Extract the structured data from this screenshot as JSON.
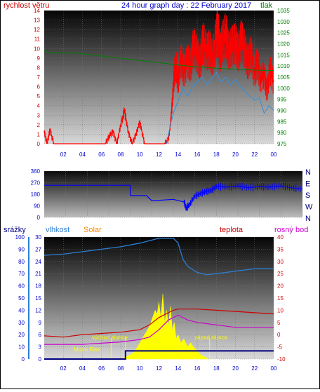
{
  "title": "24 hour graph day : 22 February 2017",
  "colors": {
    "wind": "#ff0000",
    "gust_line": "#3b8fd6",
    "pressure": "#008000",
    "direction": "#0000ff",
    "humidity": "#2c7fd4",
    "solar": "#ffff00",
    "temperature": "#cc0000",
    "dewpoint": "#cc00cc",
    "rain": "#000080",
    "label_blue": "#0000cc",
    "label_orange": "#ff8800",
    "label_red": "#cc0000"
  },
  "x_ticks": [
    "02",
    "04",
    "06",
    "08",
    "10",
    "12",
    "14",
    "16",
    "18",
    "20",
    "22",
    "00"
  ],
  "chart_data": [
    {
      "type": "line",
      "name_left": "rychlost větru",
      "name_right": "tlak",
      "x_range": [
        0,
        24
      ],
      "y_left_range": [
        0,
        14
      ],
      "y_left_ticks": [
        "0",
        "1",
        "2",
        "3",
        "4",
        "5",
        "6",
        "7",
        "8",
        "9",
        "10",
        "11",
        "12",
        "13",
        "14"
      ],
      "y_right_range": [
        975,
        1035
      ],
      "y_right_ticks": [
        "975",
        "980",
        "985",
        "990",
        "995",
        "1000",
        "1005",
        "1010",
        "1015",
        "1020",
        "1025",
        "1030",
        "1035"
      ],
      "series": [
        {
          "axis": "left",
          "x": [
            0.0,
            0.3,
            0.6,
            1.0,
            1.5,
            2.0,
            3.0,
            4.0,
            5.0,
            5.5,
            6.0,
            6.4,
            6.8,
            7.2,
            7.6,
            8.0,
            8.4,
            8.8,
            9.2,
            9.6,
            10.0,
            10.5,
            11.0,
            11.5,
            12.0,
            12.3,
            12.6,
            13.0,
            13.2,
            13.4,
            13.6,
            13.8,
            14.0,
            14.3,
            14.6,
            15.0,
            15.3,
            15.6,
            16.0,
            16.3,
            16.6,
            17.0,
            17.3,
            17.6,
            18.0,
            18.2,
            18.4,
            18.6,
            19.0,
            19.3,
            19.6,
            20.0,
            20.3,
            20.6,
            21.0,
            21.3,
            21.6,
            22.0,
            22.3,
            22.6,
            23.0,
            23.3,
            23.6,
            24.0
          ],
          "values": [
            1.3,
            0,
            1.5,
            0,
            0,
            0,
            0,
            0,
            0,
            0,
            0,
            0,
            0.8,
            1.3,
            0,
            2.0,
            3.5,
            1.2,
            0,
            1.0,
            2.3,
            0,
            0,
            0,
            0,
            0,
            0,
            0.5,
            2.0,
            4.5,
            7.5,
            8.5,
            6.5,
            9.2,
            7.5,
            9.0,
            8.2,
            10.5,
            9.5,
            8.5,
            11.0,
            9.8,
            10.2,
            9.0,
            11.5,
            12.0,
            9.5,
            10.8,
            11.8,
            9.8,
            10.5,
            10.8,
            9.6,
            11.2,
            10.0,
            8.5,
            9.8,
            7.5,
            8.8,
            6.8,
            7.5,
            5.5,
            8.0,
            6.5
          ]
        },
        {
          "axis": "left",
          "x": [
            12.8,
            13.2,
            13.6,
            14.0,
            14.5,
            15.0,
            15.5,
            16.0,
            16.5,
            17.0,
            17.5,
            18.0,
            18.5,
            19.0,
            19.5,
            20.0,
            20.5,
            21.0,
            21.5,
            22.0,
            22.5,
            23.0,
            23.5,
            24.0
          ],
          "values": [
            0,
            2.0,
            3.5,
            4.5,
            5.8,
            5.0,
            6.0,
            6.5,
            7.0,
            6.2,
            6.8,
            7.5,
            6.5,
            7.0,
            6.2,
            6.8,
            6.0,
            5.5,
            5.0,
            4.6,
            4.8,
            3.2,
            4.0,
            3.5
          ]
        },
        {
          "axis": "right",
          "x": [
            0,
            0.5,
            1,
            2,
            3,
            4,
            5,
            6,
            7,
            8,
            9,
            10,
            11,
            12,
            13,
            14,
            15,
            16,
            17,
            18,
            19,
            20,
            21,
            22,
            23,
            24
          ],
          "values": [
            1017,
            1016,
            1016,
            1016,
            1016,
            1015.5,
            1015,
            1014.5,
            1014,
            1013.5,
            1013,
            1012.5,
            1012,
            1011.5,
            1011,
            1010.5,
            1010,
            1009.6,
            1009.3,
            1009,
            1008.8,
            1008.6,
            1008.4,
            1008.2,
            1008,
            1008
          ]
        }
      ]
    },
    {
      "type": "line",
      "name_right": "N W S E N",
      "x_range": [
        0,
        24
      ],
      "y_left_range": [
        0,
        360
      ],
      "y_left_ticks": [
        "0",
        "90",
        "180",
        "270",
        "360"
      ],
      "y_right_labels": [
        "N",
        "W",
        "S",
        "E",
        "N"
      ],
      "series": [
        {
          "x": [
            0,
            3,
            6,
            8,
            8.01,
            9.5,
            10,
            11,
            12,
            13,
            13.2,
            13.5,
            14,
            14.5,
            15,
            15.5,
            16,
            17,
            18,
            19,
            20,
            21,
            22,
            23,
            24
          ],
          "values": [
            250,
            250,
            250,
            250,
            170,
            170,
            130,
            135,
            140,
            120,
            70,
            100,
            165,
            185,
            200,
            210,
            240,
            235,
            245,
            230,
            240,
            235,
            245,
            230,
            220
          ]
        }
      ]
    },
    {
      "type": "line",
      "labels": [
        "srážky",
        "vlhkost",
        "Solar",
        "teplota",
        "rosný bod"
      ],
      "x_range": [
        0,
        24
      ],
      "y_left_range": [
        0,
        100
      ],
      "y_left_ticks": [
        "0",
        "10",
        "20",
        "30",
        "40",
        "50",
        "60",
        "70",
        "80",
        "90",
        "100"
      ],
      "y_mid_range": [
        0,
        30
      ],
      "y_mid_ticks": [
        "0",
        "3",
        "6",
        "9",
        "12",
        "15",
        "18",
        "21",
        "24",
        "27",
        "30"
      ],
      "y_right_range": [
        -10,
        40
      ],
      "y_right_ticks": [
        "-10",
        "-5",
        "0",
        "5",
        "10",
        "15",
        "20",
        "25",
        "30",
        "35",
        "40"
      ],
      "annotations": [
        "Moon Rise",
        "východ slunce",
        "západ slunce"
      ],
      "series": [
        {
          "name": "vlhkost",
          "x": [
            0,
            2,
            4,
            6,
            8,
            10,
            11,
            12,
            13,
            13.5,
            14,
            14.5,
            15,
            16,
            17,
            18,
            19,
            20,
            21,
            22,
            23,
            24
          ],
          "values": [
            85,
            86,
            88,
            90,
            92,
            95,
            97,
            99,
            99,
            99,
            95,
            82,
            76,
            71,
            69,
            70,
            71,
            72,
            73,
            74,
            74,
            74
          ]
        },
        {
          "name": "teplota",
          "x": [
            0,
            2,
            4,
            6,
            8,
            10,
            11,
            12,
            13,
            13.5,
            14,
            15,
            16,
            18,
            20,
            22,
            24
          ],
          "values": [
            -0.5,
            -1,
            0,
            0.5,
            1,
            2,
            4,
            7,
            9,
            10,
            10.5,
            10.5,
            10.5,
            10,
            9.5,
            9,
            8.5
          ]
        },
        {
          "name": "rosný bod",
          "x": [
            0,
            2,
            4,
            6,
            8,
            10,
            11,
            12,
            13,
            14,
            15,
            16,
            18,
            20,
            22,
            24
          ],
          "values": [
            -4,
            -4,
            -4,
            -3.5,
            -3,
            -2,
            -1,
            2,
            6,
            8,
            6,
            5,
            4,
            3,
            3,
            3
          ]
        },
        {
          "name": "Solar",
          "x": [
            8.0,
            8.5,
            9.0,
            9.5,
            10.0,
            10.5,
            11.0,
            11.3,
            11.6,
            11.8,
            12.0,
            12.2,
            12.4,
            12.6,
            12.8,
            13.0,
            13.2,
            13.4,
            13.6,
            13.8,
            14.0,
            14.3,
            14.6,
            15.0,
            15.3,
            15.6,
            16.0,
            16.4,
            16.8,
            17.2
          ],
          "values": [
            0,
            0.5,
            1,
            2,
            4,
            6,
            8,
            10,
            12,
            11,
            14,
            10,
            16,
            9,
            12,
            8,
            13,
            7,
            9,
            5,
            6,
            4,
            5,
            3,
            4,
            3,
            2,
            1,
            0.5,
            0
          ]
        },
        {
          "name": "srážky",
          "x": [
            0,
            8.5,
            8.5,
            22.9,
            23,
            24
          ],
          "values": [
            0,
            0,
            2,
            2,
            2,
            2
          ]
        }
      ]
    }
  ]
}
